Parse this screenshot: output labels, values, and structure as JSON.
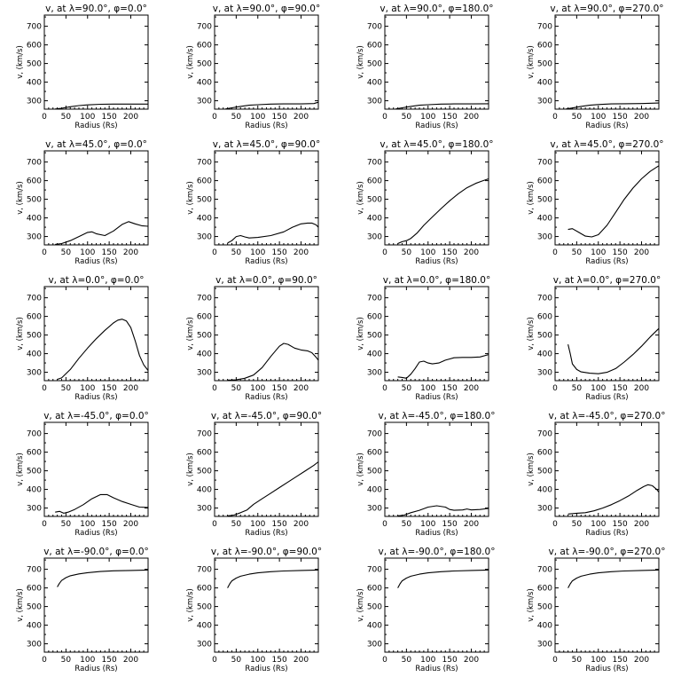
{
  "chart_data": [
    {
      "type": "line",
      "title": "v, at λ=90.0°, φ=0.0°",
      "xlabel": "Radius (Rs)",
      "ylabel": "v, (km/s)",
      "xlim": [
        0,
        240
      ],
      "ylim": [
        255,
        760
      ],
      "xticks": [
        0,
        50,
        100,
        150,
        200
      ],
      "yticks": [
        300,
        400,
        500,
        600,
        700
      ],
      "series": [
        {
          "x": [
            25,
            40,
            60,
            80,
            100,
            130,
            160,
            200,
            240
          ],
          "y": [
            256,
            260,
            268,
            274,
            278,
            281,
            282,
            282,
            282
          ]
        }
      ]
    },
    {
      "type": "line",
      "title": "v, at λ=90.0°, φ=90.0°",
      "xlabel": "Radius (Rs)",
      "ylabel": "v, (km/s)",
      "xlim": [
        0,
        240
      ],
      "ylim": [
        255,
        760
      ],
      "xticks": [
        0,
        50,
        100,
        150,
        200
      ],
      "yticks": [
        300,
        400,
        500,
        600,
        700
      ],
      "series": [
        {
          "x": [
            25,
            40,
            60,
            80,
            100,
            130,
            160,
            200,
            230,
            240
          ],
          "y": [
            256,
            262,
            270,
            276,
            279,
            282,
            283,
            283,
            285,
            292
          ]
        }
      ]
    },
    {
      "type": "line",
      "title": "v, at λ=90.0°, φ=180.0°",
      "xlabel": "Radius (Rs)",
      "ylabel": "v, (km/s)",
      "xlim": [
        0,
        240
      ],
      "ylim": [
        255,
        760
      ],
      "xticks": [
        0,
        50,
        100,
        150,
        200
      ],
      "yticks": [
        300,
        400,
        500,
        600,
        700
      ],
      "series": [
        {
          "x": [
            25,
            40,
            60,
            80,
            100,
            130,
            160,
            200,
            240
          ],
          "y": [
            256,
            262,
            270,
            276,
            279,
            282,
            283,
            283,
            284
          ]
        }
      ]
    },
    {
      "type": "line",
      "title": "v, at λ=90.0°, φ=270.0°",
      "xlabel": "Radius (Rs)",
      "ylabel": "v, (km/s)",
      "xlim": [
        0,
        240
      ],
      "ylim": [
        255,
        760
      ],
      "xticks": [
        0,
        50,
        100,
        150,
        200
      ],
      "yticks": [
        300,
        400,
        500,
        600,
        700
      ],
      "series": [
        {
          "x": [
            25,
            40,
            60,
            80,
            100,
            130,
            160,
            200,
            240
          ],
          "y": [
            256,
            261,
            270,
            276,
            280,
            283,
            284,
            285,
            288
          ]
        }
      ]
    },
    {
      "type": "line",
      "title": "v, at λ=45.0°, φ=0.0°",
      "xlabel": "Radius (Rs)",
      "ylabel": "v, (km/s)",
      "xlim": [
        0,
        240
      ],
      "ylim": [
        255,
        760
      ],
      "xticks": [
        0,
        50,
        100,
        150,
        200
      ],
      "yticks": [
        300,
        400,
        500,
        600,
        700
      ],
      "series": [
        {
          "x": [
            25,
            40,
            60,
            80,
            100,
            110,
            120,
            140,
            160,
            180,
            195,
            210,
            225,
            240
          ],
          "y": [
            258,
            262,
            278,
            300,
            322,
            325,
            315,
            305,
            330,
            365,
            380,
            368,
            358,
            355
          ]
        }
      ]
    },
    {
      "type": "line",
      "title": "v, at λ=45.0°, φ=90.0°",
      "xlabel": "Radius (Rs)",
      "ylabel": "v, (km/s)",
      "xlim": [
        0,
        240
      ],
      "ylim": [
        255,
        760
      ],
      "xticks": [
        0,
        50,
        100,
        150,
        200
      ],
      "yticks": [
        300,
        400,
        500,
        600,
        700
      ],
      "series": [
        {
          "x": [
            30,
            40,
            50,
            60,
            70,
            80,
            100,
            130,
            160,
            180,
            200,
            215,
            225,
            235,
            240
          ],
          "y": [
            265,
            278,
            300,
            305,
            298,
            292,
            295,
            305,
            325,
            350,
            368,
            372,
            372,
            362,
            350
          ]
        }
      ]
    },
    {
      "type": "line",
      "title": "v, at λ=45.0°, φ=180.0°",
      "xlabel": "Radius (Rs)",
      "ylabel": "v, (km/s)",
      "xlim": [
        0,
        240
      ],
      "ylim": [
        255,
        760
      ],
      "xticks": [
        0,
        50,
        100,
        150,
        200
      ],
      "yticks": [
        300,
        400,
        500,
        600,
        700
      ],
      "series": [
        {
          "x": [
            30,
            40,
            50,
            60,
            75,
            90,
            110,
            130,
            150,
            170,
            190,
            210,
            225,
            240
          ],
          "y": [
            262,
            272,
            278,
            290,
            320,
            360,
            405,
            450,
            492,
            530,
            562,
            585,
            598,
            610
          ]
        }
      ]
    },
    {
      "type": "line",
      "title": "v, at λ=45.0°, φ=270.0°",
      "xlabel": "Radius (Rs)",
      "ylabel": "v, (km/s)",
      "xlim": [
        0,
        240
      ],
      "ylim": [
        255,
        760
      ],
      "xticks": [
        0,
        50,
        100,
        150,
        200
      ],
      "yticks": [
        300,
        400,
        500,
        600,
        700
      ],
      "series": [
        {
          "x": [
            30,
            40,
            55,
            70,
            85,
            100,
            120,
            140,
            160,
            180,
            200,
            220,
            240
          ],
          "y": [
            338,
            342,
            322,
            302,
            298,
            310,
            360,
            430,
            500,
            560,
            610,
            650,
            680
          ]
        }
      ]
    },
    {
      "type": "line",
      "title": "v, at λ=0.0°, φ=0.0°",
      "xlabel": "Radius (Rs)",
      "ylabel": "v, (km/s)",
      "xlim": [
        0,
        240
      ],
      "ylim": [
        255,
        760
      ],
      "xticks": [
        0,
        50,
        100,
        150,
        200
      ],
      "yticks": [
        300,
        400,
        500,
        600,
        700
      ],
      "series": [
        {
          "x": [
            30,
            40,
            60,
            80,
            100,
            120,
            140,
            160,
            170,
            180,
            190,
            200,
            210,
            220,
            230,
            240
          ],
          "y": [
            262,
            270,
            315,
            375,
            430,
            480,
            525,
            565,
            580,
            585,
            575,
            540,
            470,
            390,
            340,
            310
          ]
        }
      ]
    },
    {
      "type": "line",
      "title": "v, at λ=0.0°, φ=90.0°",
      "xlabel": "Radius (Rs)",
      "ylabel": "v, (km/s)",
      "xlim": [
        0,
        240
      ],
      "ylim": [
        255,
        760
      ],
      "xticks": [
        0,
        50,
        100,
        150,
        200
      ],
      "yticks": [
        300,
        400,
        500,
        600,
        700
      ],
      "series": [
        {
          "x": [
            30,
            50,
            70,
            90,
            110,
            130,
            150,
            160,
            170,
            185,
            200,
            215,
            225,
            235,
            240
          ],
          "y": [
            258,
            260,
            268,
            285,
            325,
            385,
            440,
            455,
            450,
            430,
            420,
            415,
            405,
            380,
            365
          ]
        }
      ]
    },
    {
      "type": "line",
      "title": "v, at λ=0.0°, φ=180.0°",
      "xlabel": "Radius (Rs)",
      "ylabel": "v, (km/s)",
      "xlim": [
        0,
        240
      ],
      "ylim": [
        255,
        760
      ],
      "xticks": [
        0,
        50,
        100,
        150,
        200
      ],
      "yticks": [
        300,
        400,
        500,
        600,
        700
      ],
      "series": [
        {
          "x": [
            30,
            40,
            50,
            60,
            70,
            80,
            90,
            100,
            110,
            125,
            140,
            160,
            180,
            200,
            220,
            240
          ],
          "y": [
            275,
            272,
            268,
            290,
            320,
            355,
            360,
            350,
            345,
            350,
            365,
            378,
            380,
            380,
            382,
            395
          ]
        }
      ]
    },
    {
      "type": "line",
      "title": "v, at λ=0.0°, φ=270.0°",
      "xlabel": "Radius (Rs)",
      "ylabel": "v, (km/s)",
      "xlim": [
        0,
        240
      ],
      "ylim": [
        255,
        760
      ],
      "xticks": [
        0,
        50,
        100,
        150,
        200
      ],
      "yticks": [
        300,
        400,
        500,
        600,
        700
      ],
      "series": [
        {
          "x": [
            30,
            35,
            40,
            50,
            60,
            80,
            100,
            120,
            140,
            160,
            180,
            200,
            220,
            240
          ],
          "y": [
            450,
            400,
            345,
            315,
            302,
            295,
            292,
            300,
            320,
            355,
            395,
            440,
            490,
            535
          ]
        }
      ]
    },
    {
      "type": "line",
      "title": "v, at λ=-45.0°, φ=0.0°",
      "xlabel": "Radius (Rs)",
      "ylabel": "v, (km/s)",
      "xlim": [
        0,
        240
      ],
      "ylim": [
        255,
        760
      ],
      "xticks": [
        0,
        50,
        100,
        150,
        200
      ],
      "yticks": [
        300,
        400,
        500,
        600,
        700
      ],
      "series": [
        {
          "x": [
            25,
            35,
            45,
            55,
            70,
            90,
            110,
            130,
            145,
            160,
            180,
            200,
            220,
            240
          ],
          "y": [
            278,
            282,
            272,
            278,
            292,
            318,
            350,
            372,
            372,
            355,
            335,
            320,
            305,
            303
          ]
        }
      ]
    },
    {
      "type": "line",
      "title": "v, at λ=-45.0°, φ=90.0°",
      "xlabel": "Radius (Rs)",
      "ylabel": "v, (km/s)",
      "xlim": [
        0,
        240
      ],
      "ylim": [
        255,
        760
      ],
      "xticks": [
        0,
        50,
        100,
        150,
        200
      ],
      "yticks": [
        300,
        400,
        500,
        600,
        700
      ],
      "series": [
        {
          "x": [
            30,
            45,
            60,
            75,
            90,
            110,
            130,
            150,
            170,
            190,
            210,
            230,
            240
          ],
          "y": [
            258,
            262,
            275,
            290,
            320,
            350,
            380,
            410,
            440,
            470,
            500,
            530,
            548
          ]
        }
      ]
    },
    {
      "type": "line",
      "title": "v, at λ=-45.0°, φ=180.0°",
      "xlabel": "Radius (Rs)",
      "ylabel": "v, (km/s)",
      "xlim": [
        0,
        240
      ],
      "ylim": [
        255,
        760
      ],
      "xticks": [
        0,
        50,
        100,
        150,
        200
      ],
      "yticks": [
        300,
        400,
        500,
        600,
        700
      ],
      "series": [
        {
          "x": [
            30,
            45,
            60,
            80,
            100,
            120,
            140,
            150,
            160,
            180,
            190,
            200,
            220,
            240
          ],
          "y": [
            258,
            262,
            275,
            288,
            305,
            312,
            305,
            292,
            288,
            290,
            295,
            290,
            292,
            298
          ]
        }
      ]
    },
    {
      "type": "line",
      "title": "v, at λ=-45.0°, φ=270.0°",
      "xlabel": "Radius (Rs)",
      "ylabel": "v, (km/s)",
      "xlim": [
        0,
        240
      ],
      "ylim": [
        255,
        760
      ],
      "xticks": [
        0,
        50,
        100,
        150,
        200
      ],
      "yticks": [
        300,
        400,
        500,
        600,
        700
      ],
      "series": [
        {
          "x": [
            30,
            50,
            70,
            90,
            110,
            130,
            150,
            170,
            190,
            205,
            215,
            225,
            235,
            240
          ],
          "y": [
            268,
            272,
            275,
            285,
            300,
            318,
            340,
            365,
            395,
            415,
            425,
            420,
            400,
            385
          ]
        }
      ]
    },
    {
      "type": "line",
      "title": "v, at λ=-90.0°, φ=0.0°",
      "xlabel": "Radius (Rs)",
      "ylabel": "v, (km/s)",
      "xlim": [
        0,
        240
      ],
      "ylim": [
        255,
        760
      ],
      "xticks": [
        0,
        50,
        100,
        150,
        200
      ],
      "yticks": [
        300,
        400,
        500,
        600,
        700
      ],
      "series": [
        {
          "x": [
            30,
            35,
            40,
            50,
            60,
            80,
            100,
            130,
            160,
            200,
            240
          ],
          "y": [
            605,
            625,
            640,
            655,
            665,
            675,
            682,
            688,
            692,
            694,
            696
          ]
        }
      ]
    },
    {
      "type": "line",
      "title": "v, at λ=-90.0°, φ=90.0°",
      "xlabel": "Radius (Rs)",
      "ylabel": "v, (km/s)",
      "xlim": [
        0,
        240
      ],
      "ylim": [
        255,
        760
      ],
      "xticks": [
        0,
        50,
        100,
        150,
        200
      ],
      "yticks": [
        300,
        400,
        500,
        600,
        700
      ],
      "series": [
        {
          "x": [
            30,
            35,
            40,
            50,
            60,
            80,
            100,
            130,
            160,
            200,
            240
          ],
          "y": [
            600,
            622,
            638,
            653,
            663,
            674,
            681,
            687,
            691,
            694,
            696
          ]
        }
      ]
    },
    {
      "type": "line",
      "title": "v, at λ=-90.0°, φ=180.0°",
      "xlabel": "Radius (Rs)",
      "ylabel": "v, (km/s)",
      "xlim": [
        0,
        240
      ],
      "ylim": [
        255,
        760
      ],
      "xticks": [
        0,
        50,
        100,
        150,
        200
      ],
      "yticks": [
        300,
        400,
        500,
        600,
        700
      ],
      "series": [
        {
          "x": [
            30,
            35,
            40,
            50,
            60,
            80,
            100,
            130,
            160,
            200,
            240
          ],
          "y": [
            600,
            622,
            638,
            653,
            663,
            674,
            681,
            687,
            691,
            694,
            696
          ]
        }
      ]
    },
    {
      "type": "line",
      "title": "v, at λ=-90.0°, φ=270.0°",
      "xlabel": "Radius (Rs)",
      "ylabel": "v, (km/s)",
      "xlim": [
        0,
        240
      ],
      "ylim": [
        255,
        760
      ],
      "xticks": [
        0,
        50,
        100,
        150,
        200
      ],
      "yticks": [
        300,
        400,
        500,
        600,
        700
      ],
      "series": [
        {
          "x": [
            30,
            35,
            40,
            50,
            60,
            80,
            100,
            130,
            160,
            200,
            240
          ],
          "y": [
            600,
            622,
            638,
            653,
            663,
            674,
            681,
            687,
            691,
            694,
            696
          ]
        }
      ]
    }
  ]
}
